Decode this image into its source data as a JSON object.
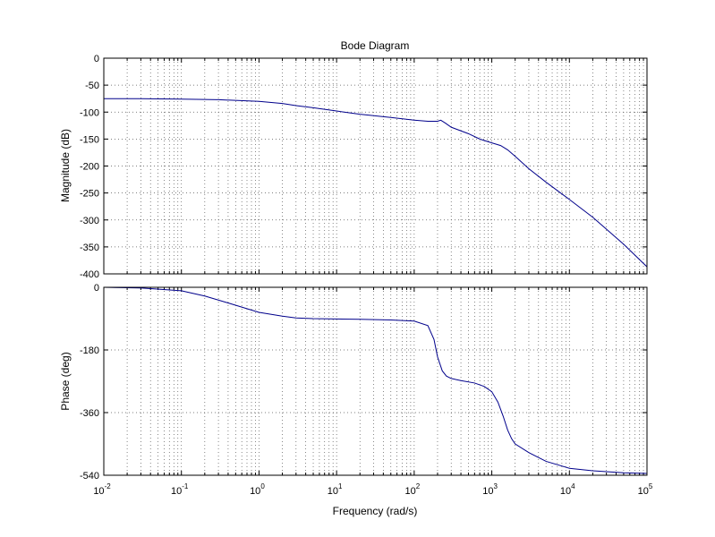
{
  "chart_data": {
    "type": "line",
    "title": "Bode Diagram",
    "xlabel": "Frequency  (rad/s)",
    "x_scale": "log",
    "xlim": [
      0.01,
      100000
    ],
    "x_ticks": [
      {
        "value": 0.01,
        "base": "10",
        "exp": "-2"
      },
      {
        "value": 0.1,
        "base": "10",
        "exp": "-1"
      },
      {
        "value": 1,
        "base": "10",
        "exp": "0"
      },
      {
        "value": 10,
        "base": "10",
        "exp": "1"
      },
      {
        "value": 100,
        "base": "10",
        "exp": "2"
      },
      {
        "value": 1000,
        "base": "10",
        "exp": "3"
      },
      {
        "value": 10000,
        "base": "10",
        "exp": "4"
      },
      {
        "value": 100000,
        "base": "10",
        "exp": "5"
      }
    ],
    "grid": true,
    "line_color": "#00008b",
    "panels": [
      {
        "name": "magnitude",
        "ylabel": "Magnitude (dB)",
        "ylim": [
          -400,
          0
        ],
        "y_ticks": [
          0,
          -50,
          -100,
          -150,
          -200,
          -250,
          -300,
          -350,
          -400
        ],
        "series": [
          {
            "x": [
              0.01,
              0.03,
              0.1,
              0.3,
              1,
              2,
              3,
              5,
              10,
              20,
              50,
              100,
              150,
              200,
              220,
              250,
              300,
              500,
              700,
              1000,
              1300,
              1600,
              2000,
              3000,
              5000,
              10000,
              20000,
              50000,
              100000
            ],
            "y": [
              -75,
              -75,
              -76,
              -77,
              -80,
              -84,
              -88,
              -92,
              -98,
              -104,
              -110,
              -115,
              -117,
              -117,
              -115,
              -120,
              -128,
              -140,
              -150,
              -157,
              -162,
              -170,
              -182,
              -205,
              -230,
              -262,
              -295,
              -345,
              -387
            ]
          }
        ]
      },
      {
        "name": "phase",
        "ylabel": "Phase (deg)",
        "ylim": [
          -540,
          0
        ],
        "y_ticks": [
          0,
          -180,
          -360,
          -540
        ],
        "series": [
          {
            "x": [
              0.01,
              0.03,
              0.1,
              0.2,
              0.4,
              1,
              2,
              3,
              5,
              10,
              20,
              50,
              100,
              150,
              180,
              200,
              230,
              260,
              300,
              400,
              600,
              800,
              1000,
              1200,
              1400,
              1600,
              1800,
              2000,
              3000,
              5000,
              10000,
              20000,
              50000,
              100000
            ],
            "y": [
              0,
              -2,
              -10,
              -25,
              -45,
              -72,
              -83,
              -88,
              -90,
              -91,
              -92,
              -94,
              -97,
              -110,
              -150,
              -200,
              -240,
              -255,
              -262,
              -268,
              -275,
              -285,
              -300,
              -330,
              -370,
              -410,
              -435,
              -450,
              -475,
              -500,
              -520,
              -527,
              -533,
              -535
            ]
          }
        ]
      }
    ]
  }
}
